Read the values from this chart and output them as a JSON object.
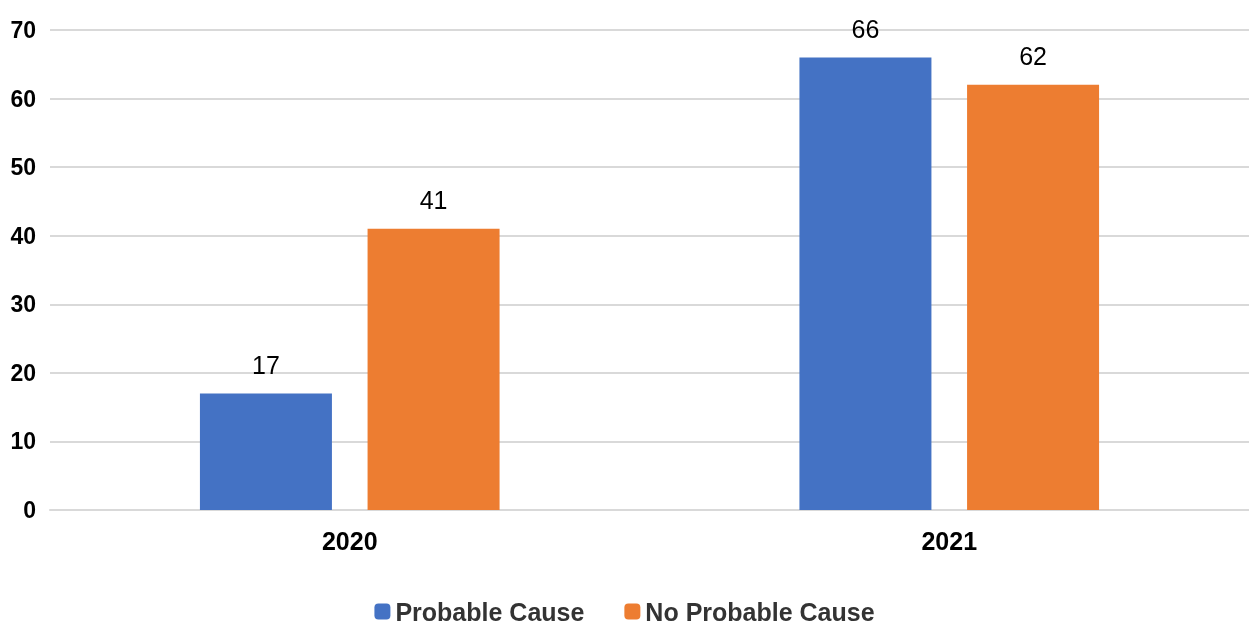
{
  "chart_data": {
    "type": "bar",
    "categories": [
      "2020",
      "2021"
    ],
    "series": [
      {
        "name": "Probable Cause",
        "color": "#4472c4",
        "values": [
          17,
          66
        ]
      },
      {
        "name": "No Probable Cause",
        "color": "#ed7d31",
        "values": [
          41,
          62
        ]
      }
    ],
    "ylim": [
      0,
      70
    ],
    "yticks": [
      0,
      10,
      20,
      30,
      40,
      50,
      60,
      70
    ],
    "grid": "y",
    "legend": "bottom",
    "data_labels": true
  }
}
